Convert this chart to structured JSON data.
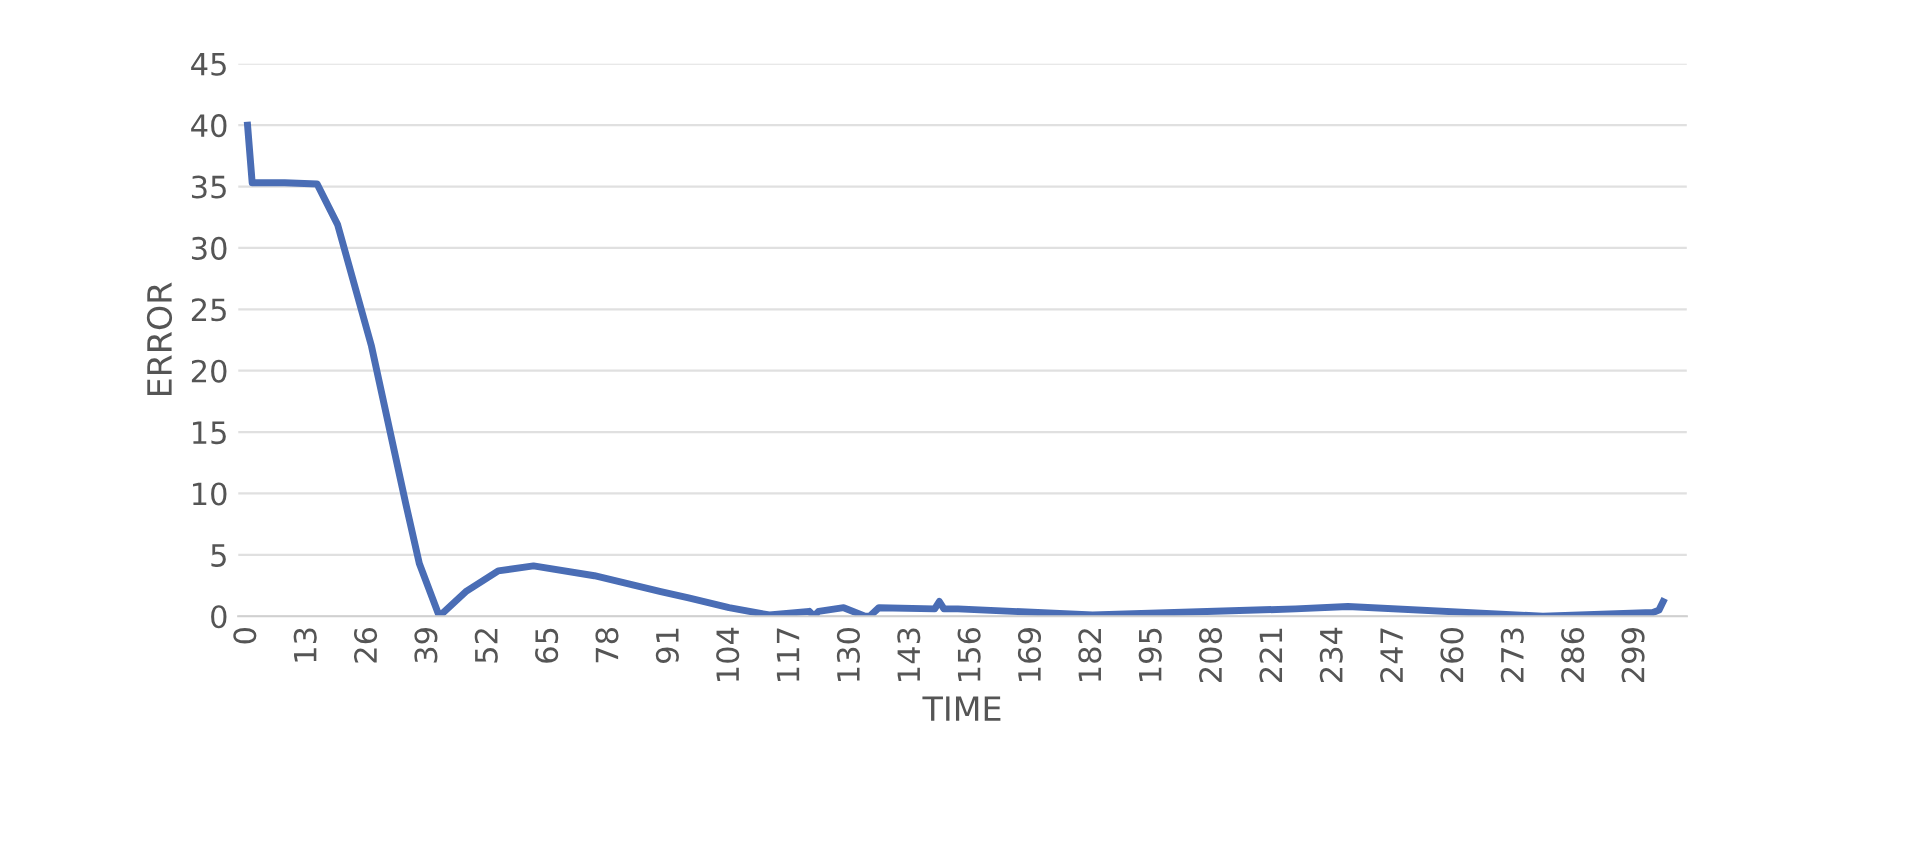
{
  "chart_data": {
    "type": "line",
    "xlabel": "TIME",
    "ylabel": "ERROR",
    "xlim": [
      -2,
      310
    ],
    "xticks": [
      0,
      13,
      26,
      39,
      52,
      65,
      78,
      91,
      104,
      117,
      130,
      143,
      156,
      169,
      182,
      195,
      208,
      221,
      234,
      247,
      260,
      273,
      286,
      299
    ],
    "ylim": [
      0,
      45
    ],
    "yticks": [
      0,
      5,
      10,
      15,
      20,
      25,
      30,
      35,
      40,
      45
    ],
    "grid": "y",
    "series": [
      {
        "color": "#4a6db5",
        "x": [
          0,
          1,
          8,
          15,
          19.4,
          26.7,
          34,
          37,
          41.3,
          47,
          54,
          61.6,
          74.7,
          89,
          95,
          103.7,
          112.4,
          121,
          122,
          123,
          128.4,
          133,
          134,
          136,
          148,
          149,
          150,
          153,
          182,
          225.7,
          237,
          279,
          302.7,
          304,
          304.9
        ],
        "values": [
          40,
          35.3,
          35.3,
          35.2,
          31.9,
          22,
          9.3,
          4.3,
          0,
          2,
          3.7,
          4.1,
          3.3,
          2,
          1.5,
          0.7,
          0.1,
          0.4,
          0,
          0.4,
          0.7,
          0,
          0,
          0.7,
          0.6,
          1.2,
          0.6,
          0.6,
          0.1,
          0.6,
          0.8,
          0,
          0.3,
          0.5,
          1.2
        ]
      }
    ]
  }
}
